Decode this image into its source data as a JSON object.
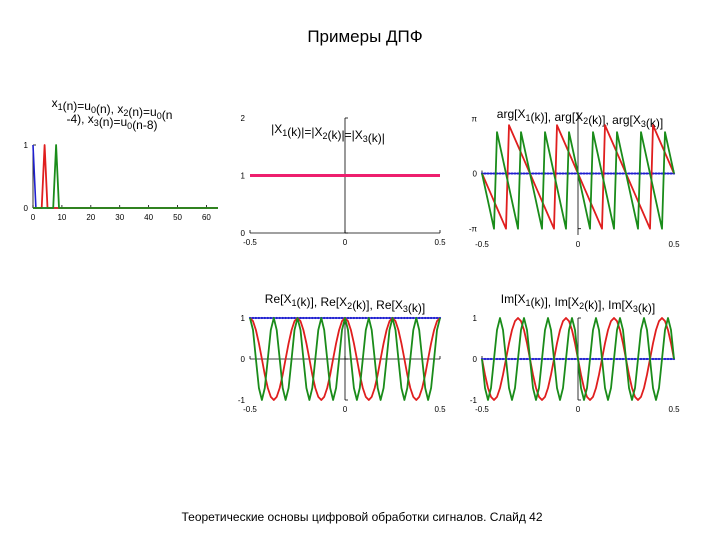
{
  "slide": {
    "title": "Примеры ДПФ",
    "footer": "Теоретические основы цифровой обработки сигналов.  Слайд  42"
  },
  "colors": {
    "x1": "#1f1fd0",
    "x2": "#e01e1e",
    "x3": "#1a8c1a",
    "magnitude": "#ee1f6e"
  },
  "chart_data": [
    {
      "id": "time",
      "type": "line",
      "title_lines": [
        [
          {
            "t": "x"
          },
          {
            "t": "1",
            "sub": true
          },
          {
            "t": "(n)=u"
          },
          {
            "t": "0",
            "sub": true
          },
          {
            "t": "(n), "
          },
          {
            "t": "x"
          },
          {
            "t": "2",
            "sub": true
          },
          {
            "t": "(n)=u"
          },
          {
            "t": "0",
            "sub": true
          },
          {
            "t": "(n"
          }
        ],
        [
          {
            "t": "-4), "
          },
          {
            "t": "x"
          },
          {
            "t": "3",
            "sub": true
          },
          {
            "t": "(n)=u"
          },
          {
            "t": "0",
            "sub": true
          },
          {
            "t": "(n-8)"
          }
        ]
      ],
      "xlim": [
        0,
        64
      ],
      "ylim": [
        0,
        1
      ],
      "xticks": [
        "0",
        "10",
        "20",
        "30",
        "40",
        "50",
        "60"
      ],
      "xtick_values": [
        0,
        10,
        20,
        30,
        40,
        50,
        60
      ],
      "yticks": [
        "0",
        "1"
      ],
      "ytick_values": [
        0,
        1
      ],
      "series": [
        {
          "key": "x1",
          "points": [
            [
              0,
              1
            ],
            [
              1,
              0
            ],
            [
              64,
              0
            ]
          ]
        },
        {
          "key": "x2",
          "points": [
            [
              0,
              0
            ],
            [
              3,
              0
            ],
            [
              4,
              1
            ],
            [
              5,
              0
            ],
            [
              64,
              0
            ]
          ]
        },
        {
          "key": "x3",
          "points": [
            [
              0,
              0
            ],
            [
              7,
              0
            ],
            [
              8,
              1
            ],
            [
              9,
              0
            ],
            [
              64,
              0
            ]
          ]
        }
      ]
    },
    {
      "id": "mag",
      "type": "line",
      "title_lines": [
        [
          {
            "t": "|X"
          },
          {
            "t": "1",
            "sub": true
          },
          {
            "t": "(k)|=|X"
          },
          {
            "t": "2",
            "sub": true
          },
          {
            "t": "(k)|=|X"
          },
          {
            "t": "3",
            "sub": true
          },
          {
            "t": "(k)|"
          }
        ]
      ],
      "xlim": [
        -0.5,
        0.5
      ],
      "ylim": [
        0,
        2
      ],
      "xticks": [
        "-0.5",
        "0",
        "0.5"
      ],
      "xtick_values": [
        -0.5,
        0,
        0.5
      ],
      "yticks": [
        "0",
        "1",
        "2"
      ],
      "ytick_values": [
        0,
        1,
        2
      ],
      "series": [
        {
          "key": "magnitude",
          "points": [
            [
              -0.5,
              1
            ],
            [
              0.5,
              1
            ]
          ]
        }
      ]
    },
    {
      "id": "arg",
      "type": "line",
      "title_lines": [
        [
          {
            "t": "arg[X"
          },
          {
            "t": "1",
            "sub": true
          },
          {
            "t": "(k)], arg[X"
          },
          {
            "t": "2",
            "sub": true
          },
          {
            "t": "(k)], arg[X"
          },
          {
            "t": "3",
            "sub": true
          },
          {
            "t": "(k)]"
          }
        ]
      ],
      "xlim": [
        -0.5,
        0.5
      ],
      "ylim": [
        -3.5,
        3.5
      ],
      "xticks": [
        "-0.5",
        "0",
        "0.5"
      ],
      "xtick_values": [
        -0.5,
        0,
        0.5
      ],
      "yticks": [
        "-π",
        "0",
        "π"
      ],
      "ytick_values": [
        -3.1416,
        0,
        3.1416
      ],
      "series": [
        {
          "key": "x1",
          "fn": "arg",
          "delay": 0
        },
        {
          "key": "x2",
          "fn": "arg",
          "delay": 4
        },
        {
          "key": "x3",
          "fn": "arg",
          "delay": 8
        }
      ]
    },
    {
      "id": "re",
      "type": "line",
      "title_lines": [
        [
          {
            "t": "Re[X"
          },
          {
            "t": "1",
            "sub": true
          },
          {
            "t": "(k)], Re[X"
          },
          {
            "t": "2",
            "sub": true
          },
          {
            "t": "(k)], Re[X"
          },
          {
            "t": "3",
            "sub": true
          },
          {
            "t": "(k)]"
          }
        ]
      ],
      "xlim": [
        -0.5,
        0.5
      ],
      "ylim": [
        -1,
        1
      ],
      "xticks": [
        "-0.5",
        "0",
        "0.5"
      ],
      "xtick_values": [
        -0.5,
        0,
        0.5
      ],
      "yticks": [
        "-1",
        "0",
        "1"
      ],
      "ytick_values": [
        -1,
        0,
        1
      ],
      "series": [
        {
          "key": "x1",
          "fn": "re",
          "delay": 0
        },
        {
          "key": "x2",
          "fn": "re",
          "delay": 4
        },
        {
          "key": "x3",
          "fn": "re",
          "delay": 8
        }
      ]
    },
    {
      "id": "im",
      "type": "line",
      "title_lines": [
        [
          {
            "t": "Im[X"
          },
          {
            "t": "1",
            "sub": true
          },
          {
            "t": "(k)], Im[X"
          },
          {
            "t": "2",
            "sub": true
          },
          {
            "t": "(k)], Im[X"
          },
          {
            "t": "3",
            "sub": true
          },
          {
            "t": "(k)]"
          }
        ]
      ],
      "xlim": [
        -0.5,
        0.5
      ],
      "ylim": [
        -1,
        1
      ],
      "xticks": [
        "-0.5",
        "0",
        "0.5"
      ],
      "xtick_values": [
        -0.5,
        0,
        0.5
      ],
      "yticks": [
        "-1",
        "0",
        "1"
      ],
      "ytick_values": [
        -1,
        0,
        1
      ],
      "series": [
        {
          "key": "x1",
          "fn": "im",
          "delay": 0
        },
        {
          "key": "x2",
          "fn": "im",
          "delay": 4
        },
        {
          "key": "x3",
          "fn": "im",
          "delay": 8
        }
      ]
    }
  ]
}
